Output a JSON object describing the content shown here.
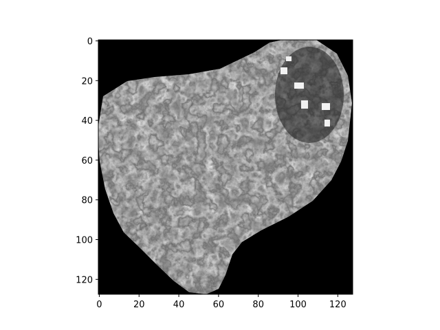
{
  "figure": {
    "background": "#ffffff",
    "image": {
      "description_shape": "grayscale-textured-blob",
      "colormap": "gray",
      "rows": 128,
      "cols": 128,
      "background_value_color": "#000000"
    },
    "axes": {
      "x_ticks": [
        "0",
        "20",
        "40",
        "60",
        "80",
        "100",
        "120"
      ],
      "y_ticks": [
        "0",
        "20",
        "40",
        "60",
        "80",
        "100",
        "120"
      ],
      "xlim": [
        0,
        128
      ],
      "ylim": [
        128,
        0
      ],
      "spine_color": "#000000"
    }
  }
}
